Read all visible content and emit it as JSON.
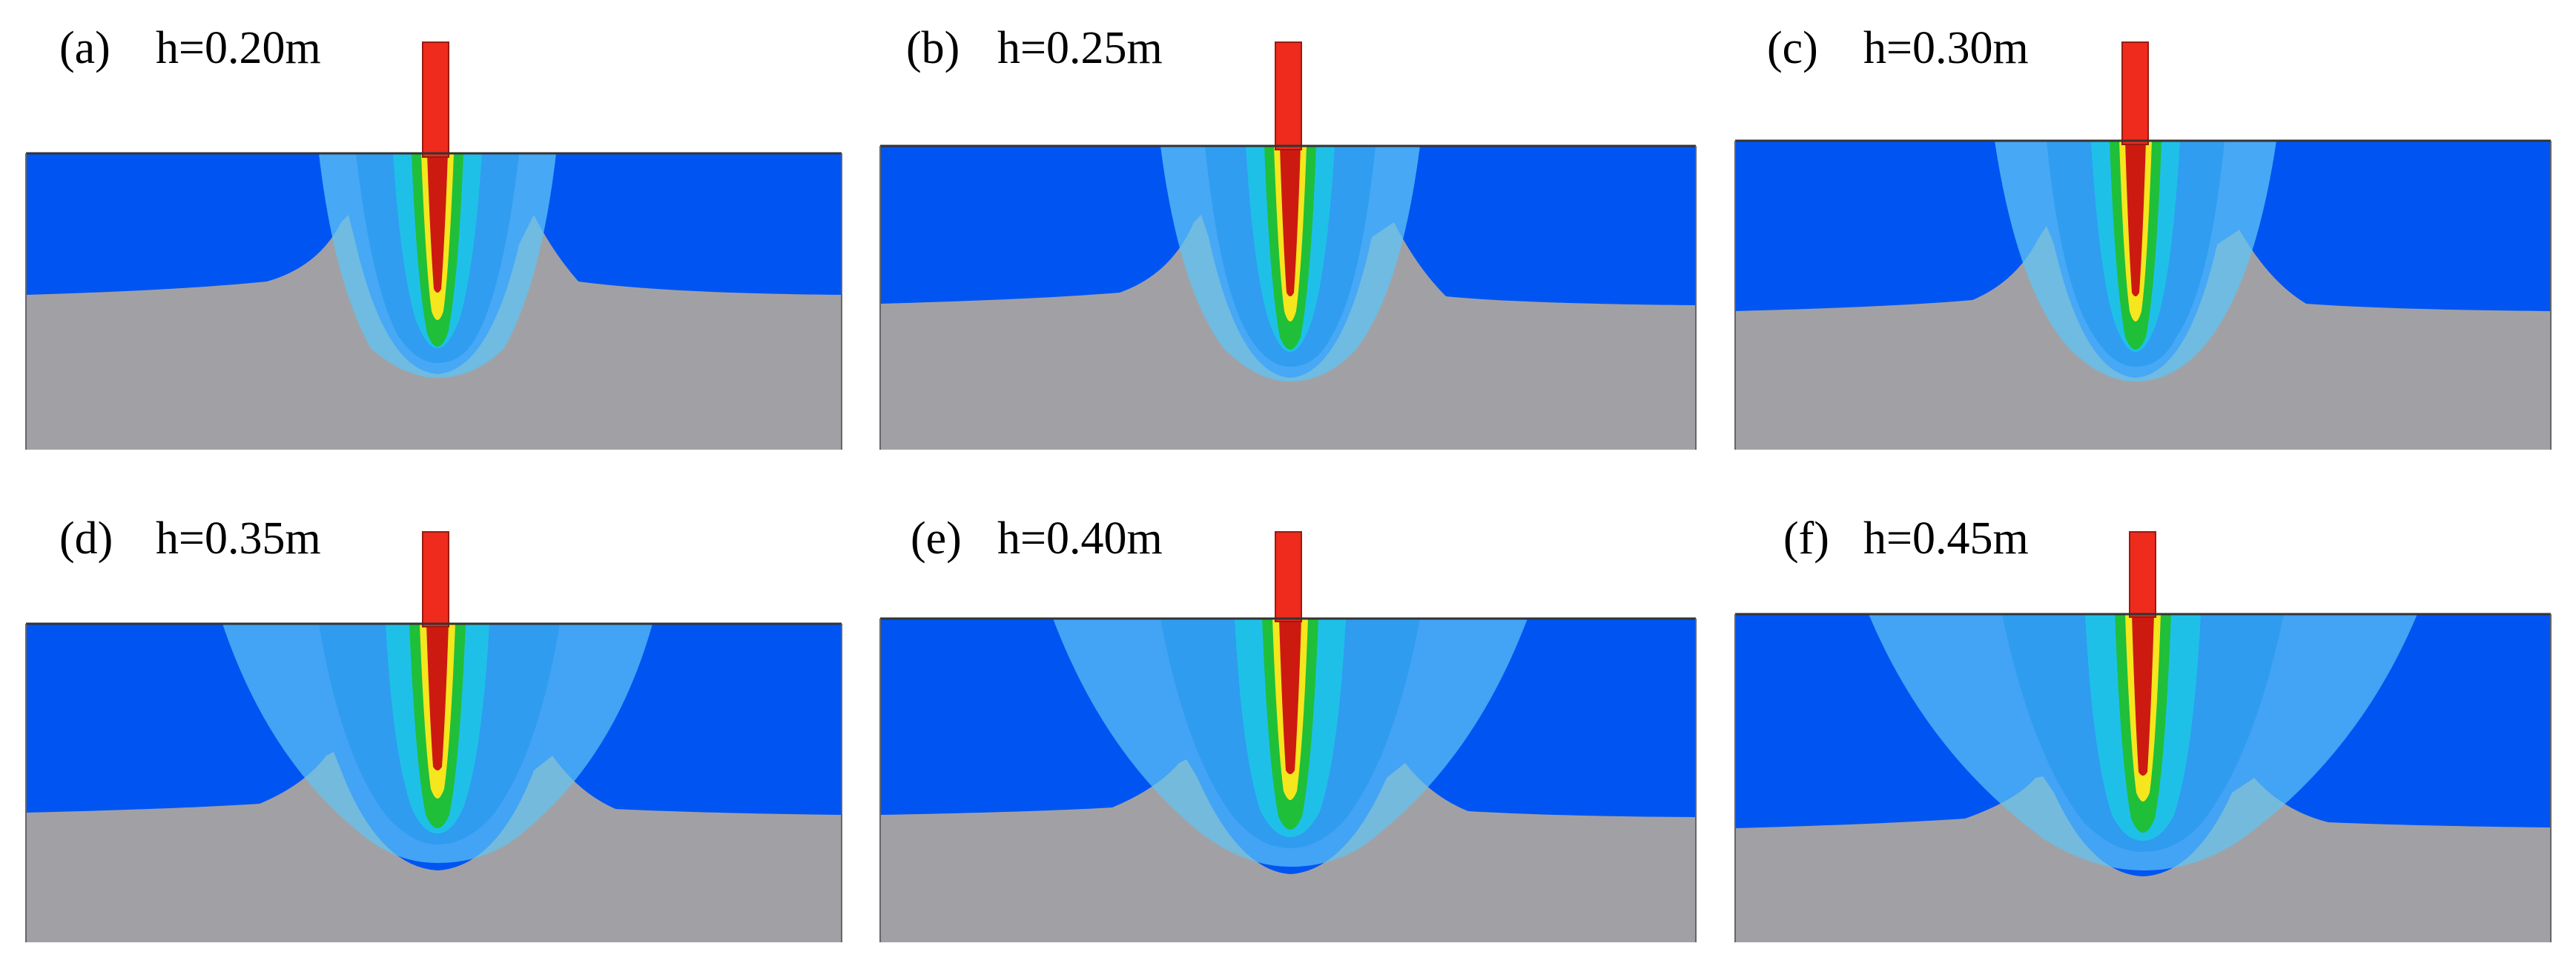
{
  "panels": [
    {
      "tag": "(a)",
      "label": "h=0.20m"
    },
    {
      "tag": "(b)",
      "label": "h=0.25m"
    },
    {
      "tag": "(c)",
      "label": "h=0.30m"
    },
    {
      "tag": "(d)",
      "label": "h=0.35m"
    },
    {
      "tag": "(e)",
      "label": "h=0.40m"
    },
    {
      "tag": "(f)",
      "label": "h=0.45m"
    }
  ],
  "colors": {
    "water": "#0055f2",
    "soil": "#a1a1a5",
    "pipe": "#ee2b1c",
    "jet_core": "#cc1a10",
    "jet_yellow": "#f5e61e",
    "jet_green": "#1fbf3a",
    "jet_cyan": "#1fc0e8",
    "plume_light": "#5fc4f5",
    "plume_mid": "#2e9bf0"
  }
}
